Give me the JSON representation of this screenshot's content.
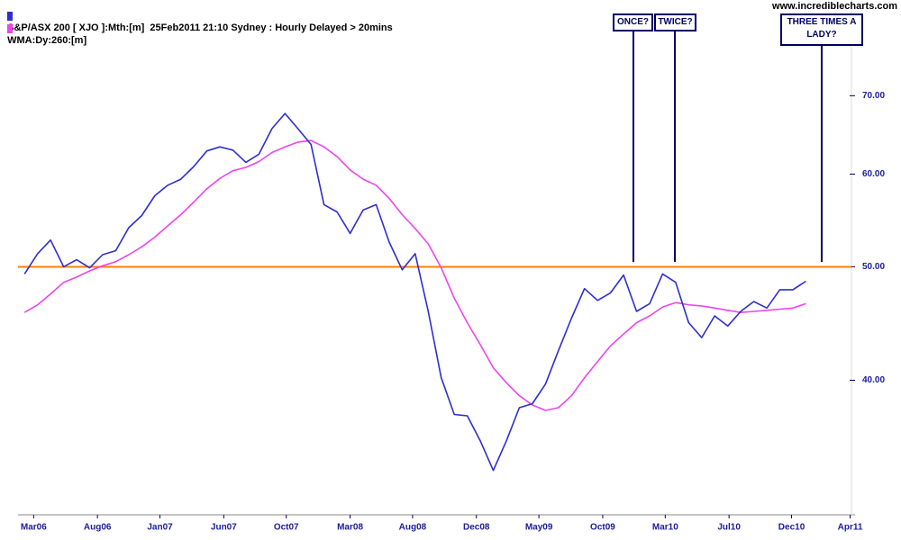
{
  "chart_data": {
    "type": "line",
    "watermark": "www.incrediblecharts.com",
    "x": [
      0,
      1,
      2,
      3,
      4,
      5,
      6,
      7,
      8,
      9,
      10,
      11,
      12,
      13,
      14,
      15,
      16,
      17,
      18,
      19,
      20,
      21,
      22,
      23,
      24,
      25,
      26,
      27,
      28,
      29,
      30,
      31,
      32,
      33,
      34,
      35,
      36,
      37,
      38,
      39,
      40,
      41,
      42,
      43,
      44,
      45,
      46,
      47,
      48,
      49,
      50,
      51,
      52,
      53,
      54,
      55,
      56,
      57,
      58,
      59,
      60
    ],
    "series": [
      {
        "name": "S&P/ASX 200 [ XJO ]:Mth:[m]  25Feb2011 21:10 Sydney : Hourly Delayed > 20mins",
        "color": "#2e2ed0",
        "values": [
          49.3,
          51.3,
          52.7,
          50.0,
          50.7,
          49.9,
          51.2,
          51.6,
          54.0,
          55.3,
          57.5,
          58.7,
          59.4,
          60.9,
          62.8,
          63.3,
          62.9,
          61.4,
          62.4,
          65.6,
          67.6,
          65.6,
          63.6,
          56.5,
          55.7,
          53.4,
          55.9,
          56.5,
          52.5,
          49.7,
          51.3,
          45.8,
          40.2,
          37.4,
          37.3,
          35.5,
          33.5,
          35.5,
          37.9,
          38.2,
          39.7,
          42.4,
          45.2,
          47.9,
          46.8,
          47.5,
          49.2,
          45.8,
          46.5,
          49.3,
          48.5,
          44.8,
          43.5,
          45.4,
          44.5,
          45.8,
          46.7,
          46.1,
          47.8,
          47.8,
          48.6
        ]
      },
      {
        "name": "WMA:Dy:260:[m]",
        "color": "#ee44ee",
        "values": [
          45.7,
          46.4,
          47.4,
          48.5,
          49.0,
          49.6,
          50.1,
          50.5,
          51.2,
          52.0,
          53.0,
          54.2,
          55.4,
          56.8,
          58.3,
          59.5,
          60.4,
          60.8,
          61.5,
          62.6,
          63.3,
          63.9,
          64.1,
          63.3,
          62.1,
          60.5,
          59.4,
          58.7,
          57.2,
          55.4,
          53.9,
          52.3,
          49.9,
          47.0,
          44.8,
          42.9,
          41.0,
          39.8,
          38.8,
          38.1,
          37.7,
          37.9,
          38.8,
          40.2,
          41.5,
          42.8,
          43.8,
          44.8,
          45.4,
          46.2,
          46.6,
          46.4,
          46.3,
          46.1,
          45.9,
          45.7,
          45.8,
          45.9,
          46.0,
          46.1,
          46.5
        ]
      }
    ],
    "xlim": [
      -0.5,
      63.5
    ],
    "xticks": [
      {
        "value": 0.7,
        "label": "Mar06"
      },
      {
        "value": 5.6,
        "label": "Aug06"
      },
      {
        "value": 10.4,
        "label": "Jan07"
      },
      {
        "value": 15.3,
        "label": "Jun07"
      },
      {
        "value": 20.1,
        "label": "Oct07"
      },
      {
        "value": 25.0,
        "label": "Mar08"
      },
      {
        "value": 29.8,
        "label": "Aug08"
      },
      {
        "value": 34.7,
        "label": "Dec08"
      },
      {
        "value": 39.5,
        "label": "May09"
      },
      {
        "value": 44.4,
        "label": "Oct09"
      },
      {
        "value": 49.2,
        "label": "Mar10"
      },
      {
        "value": 54.1,
        "label": "Jul10"
      },
      {
        "value": 58.9,
        "label": "Dec10"
      },
      {
        "value": 63.4,
        "label": "Apr11"
      }
    ],
    "ylim": [
      30.7,
      84.5
    ],
    "yticks": [
      {
        "value": 40,
        "label": "40.00"
      },
      {
        "value": 50,
        "label": "50.00"
      },
      {
        "value": 60,
        "label": "60.00"
      },
      {
        "value": 70,
        "label": "70.00"
      }
    ],
    "log_scale": true,
    "grid": false,
    "reference_line": {
      "value": 50,
      "color": "#ff7f00"
    },
    "annotations": [
      "ONCE?",
      "TWICE?",
      "THREE TIMES A LADY?"
    ]
  }
}
